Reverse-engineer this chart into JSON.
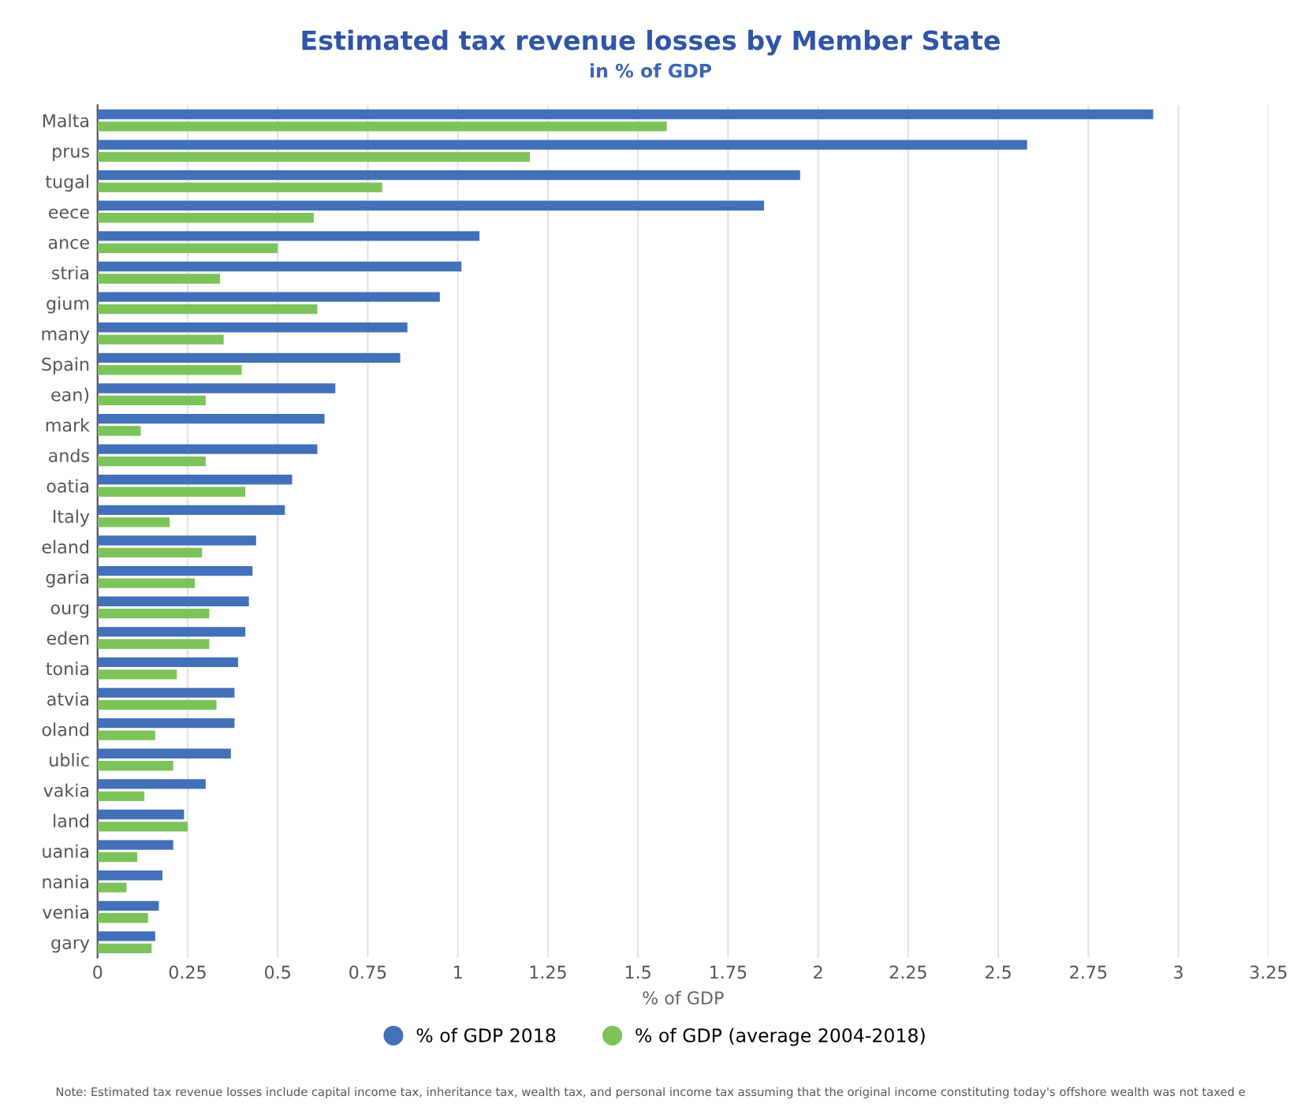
{
  "chart_data": {
    "type": "bar",
    "orientation": "horizontal",
    "title": "Estimated tax revenue losses by Member State",
    "subtitle": "in % of GDP",
    "xlabel": "% of GDP",
    "categories": [
      "Malta",
      "prus",
      "tugal",
      "eece",
      "ance",
      "stria",
      "gium",
      "many",
      "Spain",
      "ean)",
      "mark",
      "ands",
      "oatia",
      "Italy",
      "eland",
      "garia",
      "ourg",
      "eden",
      "tonia",
      "atvia",
      "oland",
      "ublic",
      "vakia",
      "land",
      "uania",
      "nania",
      "venia",
      "gary"
    ],
    "series": [
      {
        "name": "% of GDP 2018",
        "color": "#4270b9",
        "values": [
          2.93,
          2.58,
          1.95,
          1.85,
          1.06,
          1.01,
          0.95,
          0.86,
          0.84,
          0.66,
          0.63,
          0.61,
          0.54,
          0.52,
          0.44,
          0.43,
          0.42,
          0.41,
          0.39,
          0.38,
          0.38,
          0.37,
          0.3,
          0.24,
          0.21,
          0.18,
          0.17,
          0.16
        ]
      },
      {
        "name": "% of GDP (average 2004-2018)",
        "color": "#7cc35a",
        "values": [
          1.58,
          1.2,
          0.79,
          0.6,
          0.5,
          0.34,
          0.61,
          0.35,
          0.4,
          0.3,
          0.12,
          0.3,
          0.41,
          0.2,
          0.29,
          0.27,
          0.31,
          0.31,
          0.22,
          0.33,
          0.16,
          0.21,
          0.13,
          0.25,
          0.11,
          0.08,
          0.14,
          0.15
        ]
      }
    ],
    "xlim": [
      0,
      3.25
    ],
    "xticks": [
      0,
      0.25,
      0.5,
      0.75,
      1,
      1.25,
      1.5,
      1.75,
      2,
      2.25,
      2.5,
      2.75,
      3,
      3.25
    ],
    "grid": "x",
    "legend": "bottom",
    "annotations": [
      "Note: Estimated tax revenue losses include capital income tax, inheritance tax, wealth tax, and personal income tax assuming that the original income constituting today's offshore wealth was not taxed e"
    ]
  }
}
